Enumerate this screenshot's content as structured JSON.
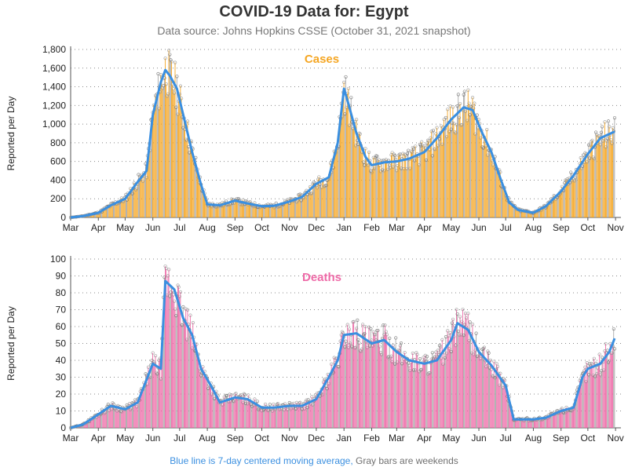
{
  "title": "COVID-19 Data for: Egypt",
  "subtitle": "Data source: Johns Hopkins CSSE (October 31, 2021 snapshot)",
  "footer": {
    "moving_avg_note": "Blue line is 7-day centered moving average,",
    "weekend_note": "Gray bars are weekends"
  },
  "colors": {
    "cases_bar": "#f5a623",
    "deaths_bar": "#ee6aa7",
    "moving_avg": "#3a8fe0",
    "weekend_bar": "#a8a8a8",
    "grid": "#888888"
  },
  "chart_data": [
    {
      "type": "bar",
      "title": "Cases",
      "ylabel": "Reported per Day",
      "ylim": [
        0,
        1800
      ],
      "yticks": [
        "0",
        "200",
        "400",
        "600",
        "800",
        "1,000",
        "1,200",
        "1,400",
        "1,600",
        "1,800"
      ],
      "ytick_values": [
        0,
        200,
        400,
        600,
        800,
        1000,
        1200,
        1400,
        1600,
        1800
      ],
      "xticks": [
        "Mar",
        "Apr",
        "May",
        "Jun",
        "Jul",
        "Aug",
        "Sep",
        "Oct",
        "Nov",
        "Dec",
        "Jan",
        "Feb",
        "Mar",
        "Apr",
        "May",
        "Jun",
        "Jul",
        "Aug",
        "Sep",
        "Oct",
        "Nov"
      ],
      "x_start": "2020-03-01",
      "x_end": "2021-10-31",
      "grid": "horizontal dotted",
      "moving_average": [
        [
          "2020-03-01",
          0
        ],
        [
          "2020-03-15",
          15
        ],
        [
          "2020-04-01",
          50
        ],
        [
          "2020-04-15",
          130
        ],
        [
          "2020-05-01",
          200
        ],
        [
          "2020-05-15",
          380
        ],
        [
          "2020-05-25",
          500
        ],
        [
          "2020-06-01",
          1100
        ],
        [
          "2020-06-10",
          1450
        ],
        [
          "2020-06-15",
          1580
        ],
        [
          "2020-06-20",
          1520
        ],
        [
          "2020-06-28",
          1380
        ],
        [
          "2020-07-05",
          1100
        ],
        [
          "2020-07-15",
          700
        ],
        [
          "2020-07-25",
          350
        ],
        [
          "2020-08-01",
          140
        ],
        [
          "2020-08-15",
          130
        ],
        [
          "2020-09-01",
          180
        ],
        [
          "2020-09-15",
          150
        ],
        [
          "2020-10-01",
          120
        ],
        [
          "2020-10-15",
          125
        ],
        [
          "2020-11-01",
          170
        ],
        [
          "2020-11-15",
          220
        ],
        [
          "2020-12-01",
          360
        ],
        [
          "2020-12-15",
          430
        ],
        [
          "2020-12-25",
          800
        ],
        [
          "2021-01-01",
          1380
        ],
        [
          "2021-01-05",
          1250
        ],
        [
          "2021-01-15",
          900
        ],
        [
          "2021-01-25",
          650
        ],
        [
          "2021-02-01",
          560
        ],
        [
          "2021-02-15",
          590
        ],
        [
          "2021-03-01",
          600
        ],
        [
          "2021-03-15",
          630
        ],
        [
          "2021-04-01",
          700
        ],
        [
          "2021-04-15",
          850
        ],
        [
          "2021-05-01",
          1050
        ],
        [
          "2021-05-15",
          1180
        ],
        [
          "2021-05-25",
          1150
        ],
        [
          "2021-06-05",
          900
        ],
        [
          "2021-06-15",
          700
        ],
        [
          "2021-06-25",
          420
        ],
        [
          "2021-07-05",
          160
        ],
        [
          "2021-07-15",
          80
        ],
        [
          "2021-08-01",
          50
        ],
        [
          "2021-08-15",
          120
        ],
        [
          "2021-09-01",
          280
        ],
        [
          "2021-09-15",
          450
        ],
        [
          "2021-10-01",
          680
        ],
        [
          "2021-10-15",
          850
        ],
        [
          "2021-10-31",
          920
        ]
      ]
    },
    {
      "type": "bar",
      "title": "Deaths",
      "ylabel": "Reported per Day",
      "ylim": [
        0,
        100
      ],
      "yticks": [
        "0",
        "10",
        "20",
        "30",
        "40",
        "50",
        "60",
        "70",
        "80",
        "90",
        "100"
      ],
      "ytick_values": [
        0,
        10,
        20,
        30,
        40,
        50,
        60,
        70,
        80,
        90,
        100
      ],
      "xticks": [
        "Mar",
        "Apr",
        "May",
        "Jun",
        "Jul",
        "Aug",
        "Sep",
        "Oct",
        "Nov",
        "Dec",
        "Jan",
        "Feb",
        "Mar",
        "Apr",
        "May",
        "Jun",
        "Jul",
        "Aug",
        "Sep",
        "Oct",
        "Nov"
      ],
      "x_start": "2020-03-01",
      "x_end": "2021-10-31",
      "grid": "horizontal dotted",
      "moving_average": [
        [
          "2020-03-01",
          0
        ],
        [
          "2020-03-15",
          2
        ],
        [
          "2020-04-01",
          8
        ],
        [
          "2020-04-15",
          13
        ],
        [
          "2020-05-01",
          11
        ],
        [
          "2020-05-15",
          15
        ],
        [
          "2020-06-01",
          38
        ],
        [
          "2020-06-10",
          35
        ],
        [
          "2020-06-15",
          87
        ],
        [
          "2020-06-25",
          82
        ],
        [
          "2020-07-05",
          65
        ],
        [
          "2020-07-15",
          55
        ],
        [
          "2020-07-25",
          35
        ],
        [
          "2020-08-05",
          25
        ],
        [
          "2020-08-15",
          15
        ],
        [
          "2020-09-01",
          18
        ],
        [
          "2020-09-15",
          17
        ],
        [
          "2020-10-01",
          12
        ],
        [
          "2020-10-15",
          12
        ],
        [
          "2020-11-01",
          13
        ],
        [
          "2020-11-15",
          13
        ],
        [
          "2020-12-01",
          17
        ],
        [
          "2020-12-15",
          30
        ],
        [
          "2020-12-25",
          40
        ],
        [
          "2021-01-01",
          55
        ],
        [
          "2021-01-15",
          56
        ],
        [
          "2021-02-01",
          50
        ],
        [
          "2021-02-15",
          52
        ],
        [
          "2021-03-01",
          45
        ],
        [
          "2021-03-15",
          40
        ],
        [
          "2021-04-01",
          38
        ],
        [
          "2021-04-15",
          40
        ],
        [
          "2021-05-01",
          52
        ],
        [
          "2021-05-08",
          62
        ],
        [
          "2021-05-20",
          58
        ],
        [
          "2021-06-01",
          45
        ],
        [
          "2021-06-15",
          37
        ],
        [
          "2021-07-01",
          25
        ],
        [
          "2021-07-10",
          5
        ],
        [
          "2021-08-01",
          5
        ],
        [
          "2021-08-15",
          6
        ],
        [
          "2021-09-01",
          10
        ],
        [
          "2021-09-15",
          12
        ],
        [
          "2021-09-25",
          30
        ],
        [
          "2021-10-01",
          35
        ],
        [
          "2021-10-15",
          38
        ],
        [
          "2021-10-25",
          45
        ],
        [
          "2021-10-31",
          53
        ]
      ]
    }
  ]
}
